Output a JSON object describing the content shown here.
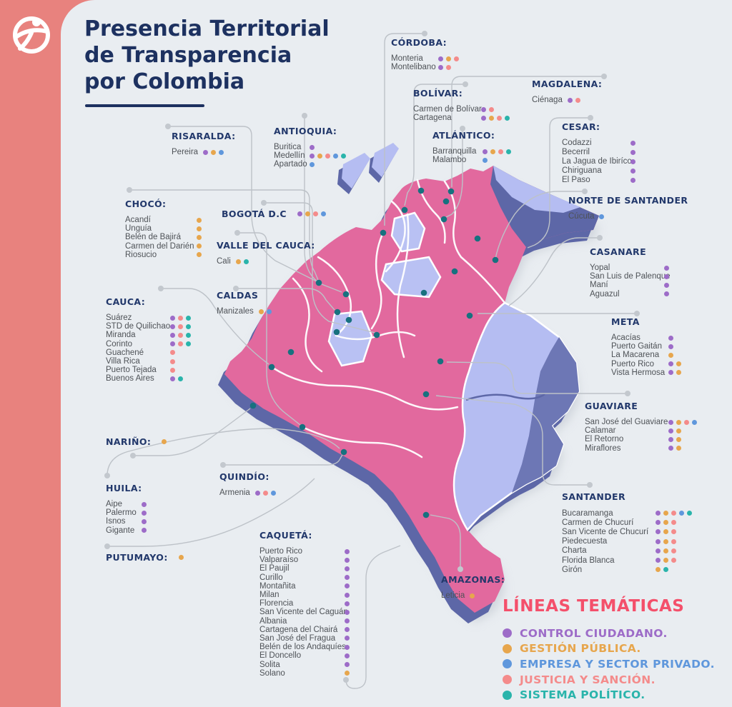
{
  "logo": {
    "name": "transparencia-por-colombia-logo"
  },
  "title": {
    "line1": "Presencia Territorial",
    "line2": "de Transparencia",
    "line3": "por Colombia"
  },
  "topics": {
    "control": {
      "label": "CONTROL CIUDADANO.",
      "color": "#9d6cc8"
    },
    "gestion": {
      "label": "GESTIÓN PÚBLICA.",
      "color": "#e7a64d"
    },
    "empresa": {
      "label": "EMPRESA Y SECTOR PRIVADO.",
      "color": "#5f97dc"
    },
    "justicia": {
      "label": "JUSTICIA Y SANCIÓN.",
      "color": "#f48b8b"
    },
    "sistema": {
      "label": "SISTEMA POLÍTICO.",
      "color": "#2ab4ab"
    }
  },
  "legend": {
    "title": "LÍNEAS TEMÁTICAS",
    "order": [
      "control",
      "gestion",
      "empresa",
      "justicia",
      "sistema"
    ]
  },
  "map": {
    "country": "Colombia",
    "land_color": "#e2699e",
    "east_region_color": "#b5bdf2",
    "side_color": "#5d67a7",
    "marker_color": "#17717f",
    "background_color": "#e9edf1",
    "sidebar_color": "#e8827e"
  },
  "departments": [
    {
      "id": "cordoba",
      "name": "CÓRDOBA:",
      "municipalities": [
        {
          "name": "Monteria",
          "topics": [
            "control",
            "gestion",
            "justicia"
          ]
        },
        {
          "name": "Montelibano",
          "topics": [
            "control",
            "justicia"
          ]
        }
      ]
    },
    {
      "id": "bolivar",
      "name": "BOLÍVAR:",
      "municipalities": [
        {
          "name": "Carmen de Bolívar",
          "topics": [
            "control",
            "justicia"
          ]
        },
        {
          "name": "Cartagena",
          "topics": [
            "control",
            "gestion",
            "justicia",
            "sistema"
          ]
        }
      ]
    },
    {
      "id": "magdalena",
      "name": "MAGDALENA:",
      "municipalities": [
        {
          "name": "Ciénaga",
          "topics": [
            "control",
            "justicia"
          ]
        }
      ]
    },
    {
      "id": "atlantico",
      "name": "ATLÁNTICO:",
      "municipalities": [
        {
          "name": "Barranquilla",
          "topics": [
            "control",
            "gestion",
            "justicia",
            "sistema"
          ]
        },
        {
          "name": "Malambo",
          "topics": [
            "empresa"
          ]
        }
      ]
    },
    {
      "id": "cesar",
      "name": "CESAR:",
      "municipalities": [
        {
          "name": "Codazzi",
          "topics": [
            "control"
          ]
        },
        {
          "name": "Becerril",
          "topics": [
            "control"
          ]
        },
        {
          "name": "La Jagua de Ibiríco",
          "topics": [
            "control"
          ]
        },
        {
          "name": "Chiriguana",
          "topics": [
            "control"
          ]
        },
        {
          "name": "El Paso",
          "topics": [
            "control"
          ]
        }
      ]
    },
    {
      "id": "norte_de_santander",
      "name": "NORTE DE SANTANDER",
      "municipalities": [
        {
          "name": "Cúcuta",
          "topics": [
            "empresa"
          ]
        }
      ]
    },
    {
      "id": "casanare",
      "name": "CASANARE",
      "municipalities": [
        {
          "name": "Yopal",
          "topics": [
            "control"
          ]
        },
        {
          "name": "San Luis de Palenque",
          "topics": [
            "control"
          ]
        },
        {
          "name": "Maní",
          "topics": [
            "control"
          ]
        },
        {
          "name": "Aguazul",
          "topics": [
            "control"
          ]
        }
      ]
    },
    {
      "id": "meta",
      "name": "META",
      "municipalities": [
        {
          "name": "Acacías",
          "topics": [
            "control"
          ]
        },
        {
          "name": "Puerto Gaitán",
          "topics": [
            "control"
          ]
        },
        {
          "name": "La Macarena",
          "topics": [
            "gestion"
          ]
        },
        {
          "name": "Puerto Rico",
          "topics": [
            "control",
            "gestion"
          ]
        },
        {
          "name": "Vista Hermosa",
          "topics": [
            "control",
            "gestion"
          ]
        }
      ]
    },
    {
      "id": "guaviare",
      "name": "GUAVIARE",
      "municipalities": [
        {
          "name": "San José del Guaviare",
          "topics": [
            "control",
            "gestion",
            "justicia",
            "empresa"
          ]
        },
        {
          "name": "Calamar",
          "topics": [
            "control",
            "gestion"
          ]
        },
        {
          "name": "El Retorno",
          "topics": [
            "control",
            "gestion"
          ]
        },
        {
          "name": "Miraflores",
          "topics": [
            "control",
            "gestion"
          ]
        }
      ]
    },
    {
      "id": "santander",
      "name": "SANTANDER",
      "municipalities": [
        {
          "name": "Bucaramanga",
          "topics": [
            "control",
            "gestion",
            "justicia",
            "empresa",
            "sistema"
          ]
        },
        {
          "name": "Carmen de Chucurí",
          "topics": [
            "control",
            "gestion",
            "justicia"
          ]
        },
        {
          "name": "San Vicente de Chucurí",
          "topics": [
            "control",
            "gestion",
            "justicia"
          ]
        },
        {
          "name": "Piedecuesta",
          "topics": [
            "control",
            "gestion",
            "justicia"
          ]
        },
        {
          "name": "Charta",
          "topics": [
            "control",
            "gestion",
            "justicia"
          ]
        },
        {
          "name": "Florida Blanca",
          "topics": [
            "control",
            "gestion",
            "justicia"
          ]
        },
        {
          "name": "Girón",
          "topics": [
            "gestion",
            "sistema"
          ]
        }
      ]
    },
    {
      "id": "risaralda",
      "name": "RISARALDA:",
      "municipalities": [
        {
          "name": "Pereira",
          "topics": [
            "control",
            "gestion",
            "empresa"
          ]
        }
      ]
    },
    {
      "id": "antioquia",
      "name": "ANTIOQUIA:",
      "municipalities": [
        {
          "name": "Buritica",
          "topics": [
            "control"
          ]
        },
        {
          "name": "Medellín",
          "topics": [
            "control",
            "gestion",
            "justicia",
            "empresa",
            "sistema"
          ]
        },
        {
          "name": "Apartado",
          "topics": [
            "empresa"
          ]
        }
      ]
    },
    {
      "id": "choco",
      "name": "CHOCÓ:",
      "municipalities": [
        {
          "name": "Acandí",
          "topics": [
            "gestion"
          ]
        },
        {
          "name": "Unguía",
          "topics": [
            "gestion"
          ]
        },
        {
          "name": "Belén de Bajirá",
          "topics": [
            "gestion"
          ]
        },
        {
          "name": "Carmen del Darién",
          "topics": [
            "gestion"
          ]
        },
        {
          "name": "Riosucio",
          "topics": [
            "gestion"
          ]
        }
      ]
    },
    {
      "id": "bogota",
      "name": "BOGOTÁ D.C",
      "inline_topics": [
        "control",
        "gestion",
        "justicia",
        "empresa"
      ]
    },
    {
      "id": "valle_del_cauca",
      "name": "VALLE DEL CAUCA:",
      "municipalities": [
        {
          "name": "Cali",
          "topics": [
            "gestion",
            "sistema"
          ]
        }
      ]
    },
    {
      "id": "caldas",
      "name": "CALDAS",
      "municipalities": [
        {
          "name": "Manizales",
          "topics": [
            "gestion",
            "empresa"
          ]
        }
      ]
    },
    {
      "id": "cauca",
      "name": "CAUCA:",
      "municipalities": [
        {
          "name": "Suárez",
          "topics": [
            "control",
            "justicia",
            "sistema"
          ]
        },
        {
          "name": "STD de Quilichao",
          "topics": [
            "control",
            "justicia",
            "sistema"
          ]
        },
        {
          "name": "Miranda",
          "topics": [
            "control",
            "justicia",
            "sistema"
          ]
        },
        {
          "name": "Corinto",
          "topics": [
            "control",
            "justicia",
            "sistema"
          ]
        },
        {
          "name": "Guachené",
          "topics": [
            "justicia"
          ]
        },
        {
          "name": "Villa Rica",
          "topics": [
            "justicia"
          ]
        },
        {
          "name": "Puerto Tejada",
          "topics": [
            "justicia"
          ]
        },
        {
          "name": "Buenos Aires",
          "topics": [
            "control",
            "sistema"
          ]
        }
      ]
    },
    {
      "id": "narino",
      "name": "NARIÑO:",
      "inline_topics": [
        "gestion"
      ]
    },
    {
      "id": "huila",
      "name": "HUILA:",
      "municipalities": [
        {
          "name": "Aipe",
          "topics": [
            "control"
          ]
        },
        {
          "name": "Palermo",
          "topics": [
            "control"
          ]
        },
        {
          "name": "Isnos",
          "topics": [
            "control"
          ]
        },
        {
          "name": "Gigante",
          "topics": [
            "control"
          ]
        }
      ]
    },
    {
      "id": "putumayo",
      "name": "PUTUMAYO:",
      "inline_topics": [
        "gestion"
      ]
    },
    {
      "id": "quindio",
      "name": "QUINDÍO:",
      "municipalities": [
        {
          "name": "Armenia",
          "topics": [
            "control",
            "justicia",
            "empresa"
          ]
        }
      ]
    },
    {
      "id": "caqueta",
      "name": "CAQUETÁ:",
      "municipalities": [
        {
          "name": "Puerto Rico",
          "topics": [
            "control"
          ]
        },
        {
          "name": "Valparaíso",
          "topics": [
            "control"
          ]
        },
        {
          "name": "El Paujil",
          "topics": [
            "control"
          ]
        },
        {
          "name": "Curillo",
          "topics": [
            "control"
          ]
        },
        {
          "name": "Montañita",
          "topics": [
            "control"
          ]
        },
        {
          "name": "Milan",
          "topics": [
            "control"
          ]
        },
        {
          "name": "Florencia",
          "topics": [
            "control"
          ]
        },
        {
          "name": "San Vicente del Caguán",
          "topics": [
            "control"
          ]
        },
        {
          "name": "Albania",
          "topics": [
            "control"
          ]
        },
        {
          "name": "Cartagena del Chairá",
          "topics": [
            "control"
          ]
        },
        {
          "name": "San José del Fragua",
          "topics": [
            "control"
          ]
        },
        {
          "name": "Belén de los Andaquíes",
          "topics": [
            "control"
          ]
        },
        {
          "name": "El Doncello",
          "topics": [
            "control"
          ]
        },
        {
          "name": "Solita",
          "topics": [
            "control"
          ]
        },
        {
          "name": "Solano",
          "topics": [
            "gestion"
          ]
        }
      ]
    },
    {
      "id": "amazonas",
      "name": "AMAZONAS:",
      "municipalities": [
        {
          "name": "Leticia",
          "topics": [
            "gestion"
          ]
        }
      ]
    }
  ]
}
